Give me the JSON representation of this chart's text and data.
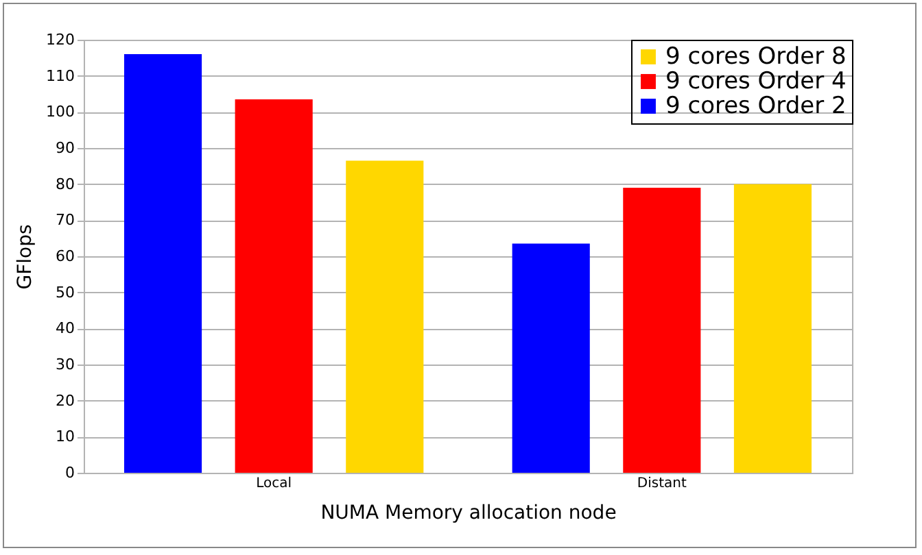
{
  "chart_data": {
    "type": "bar",
    "xlabel": "NUMA Memory allocation node",
    "ylabel": "GFlops",
    "categories": [
      "Local",
      "Distant"
    ],
    "series": [
      {
        "name": "9 cores Order 2",
        "color": "#0000ff",
        "values": [
          116,
          63.5
        ]
      },
      {
        "name": "9 cores Order 4",
        "color": "#ff0000",
        "values": [
          103.5,
          79
        ]
      },
      {
        "name": "9 cores Order 8",
        "color": "#ffd700",
        "values": [
          86.5,
          80
        ]
      }
    ],
    "ylim": [
      0,
      120
    ],
    "yticks": [
      0,
      10,
      20,
      30,
      40,
      50,
      60,
      70,
      80,
      90,
      100,
      110,
      120
    ],
    "grid": "y",
    "legend": "top right"
  }
}
